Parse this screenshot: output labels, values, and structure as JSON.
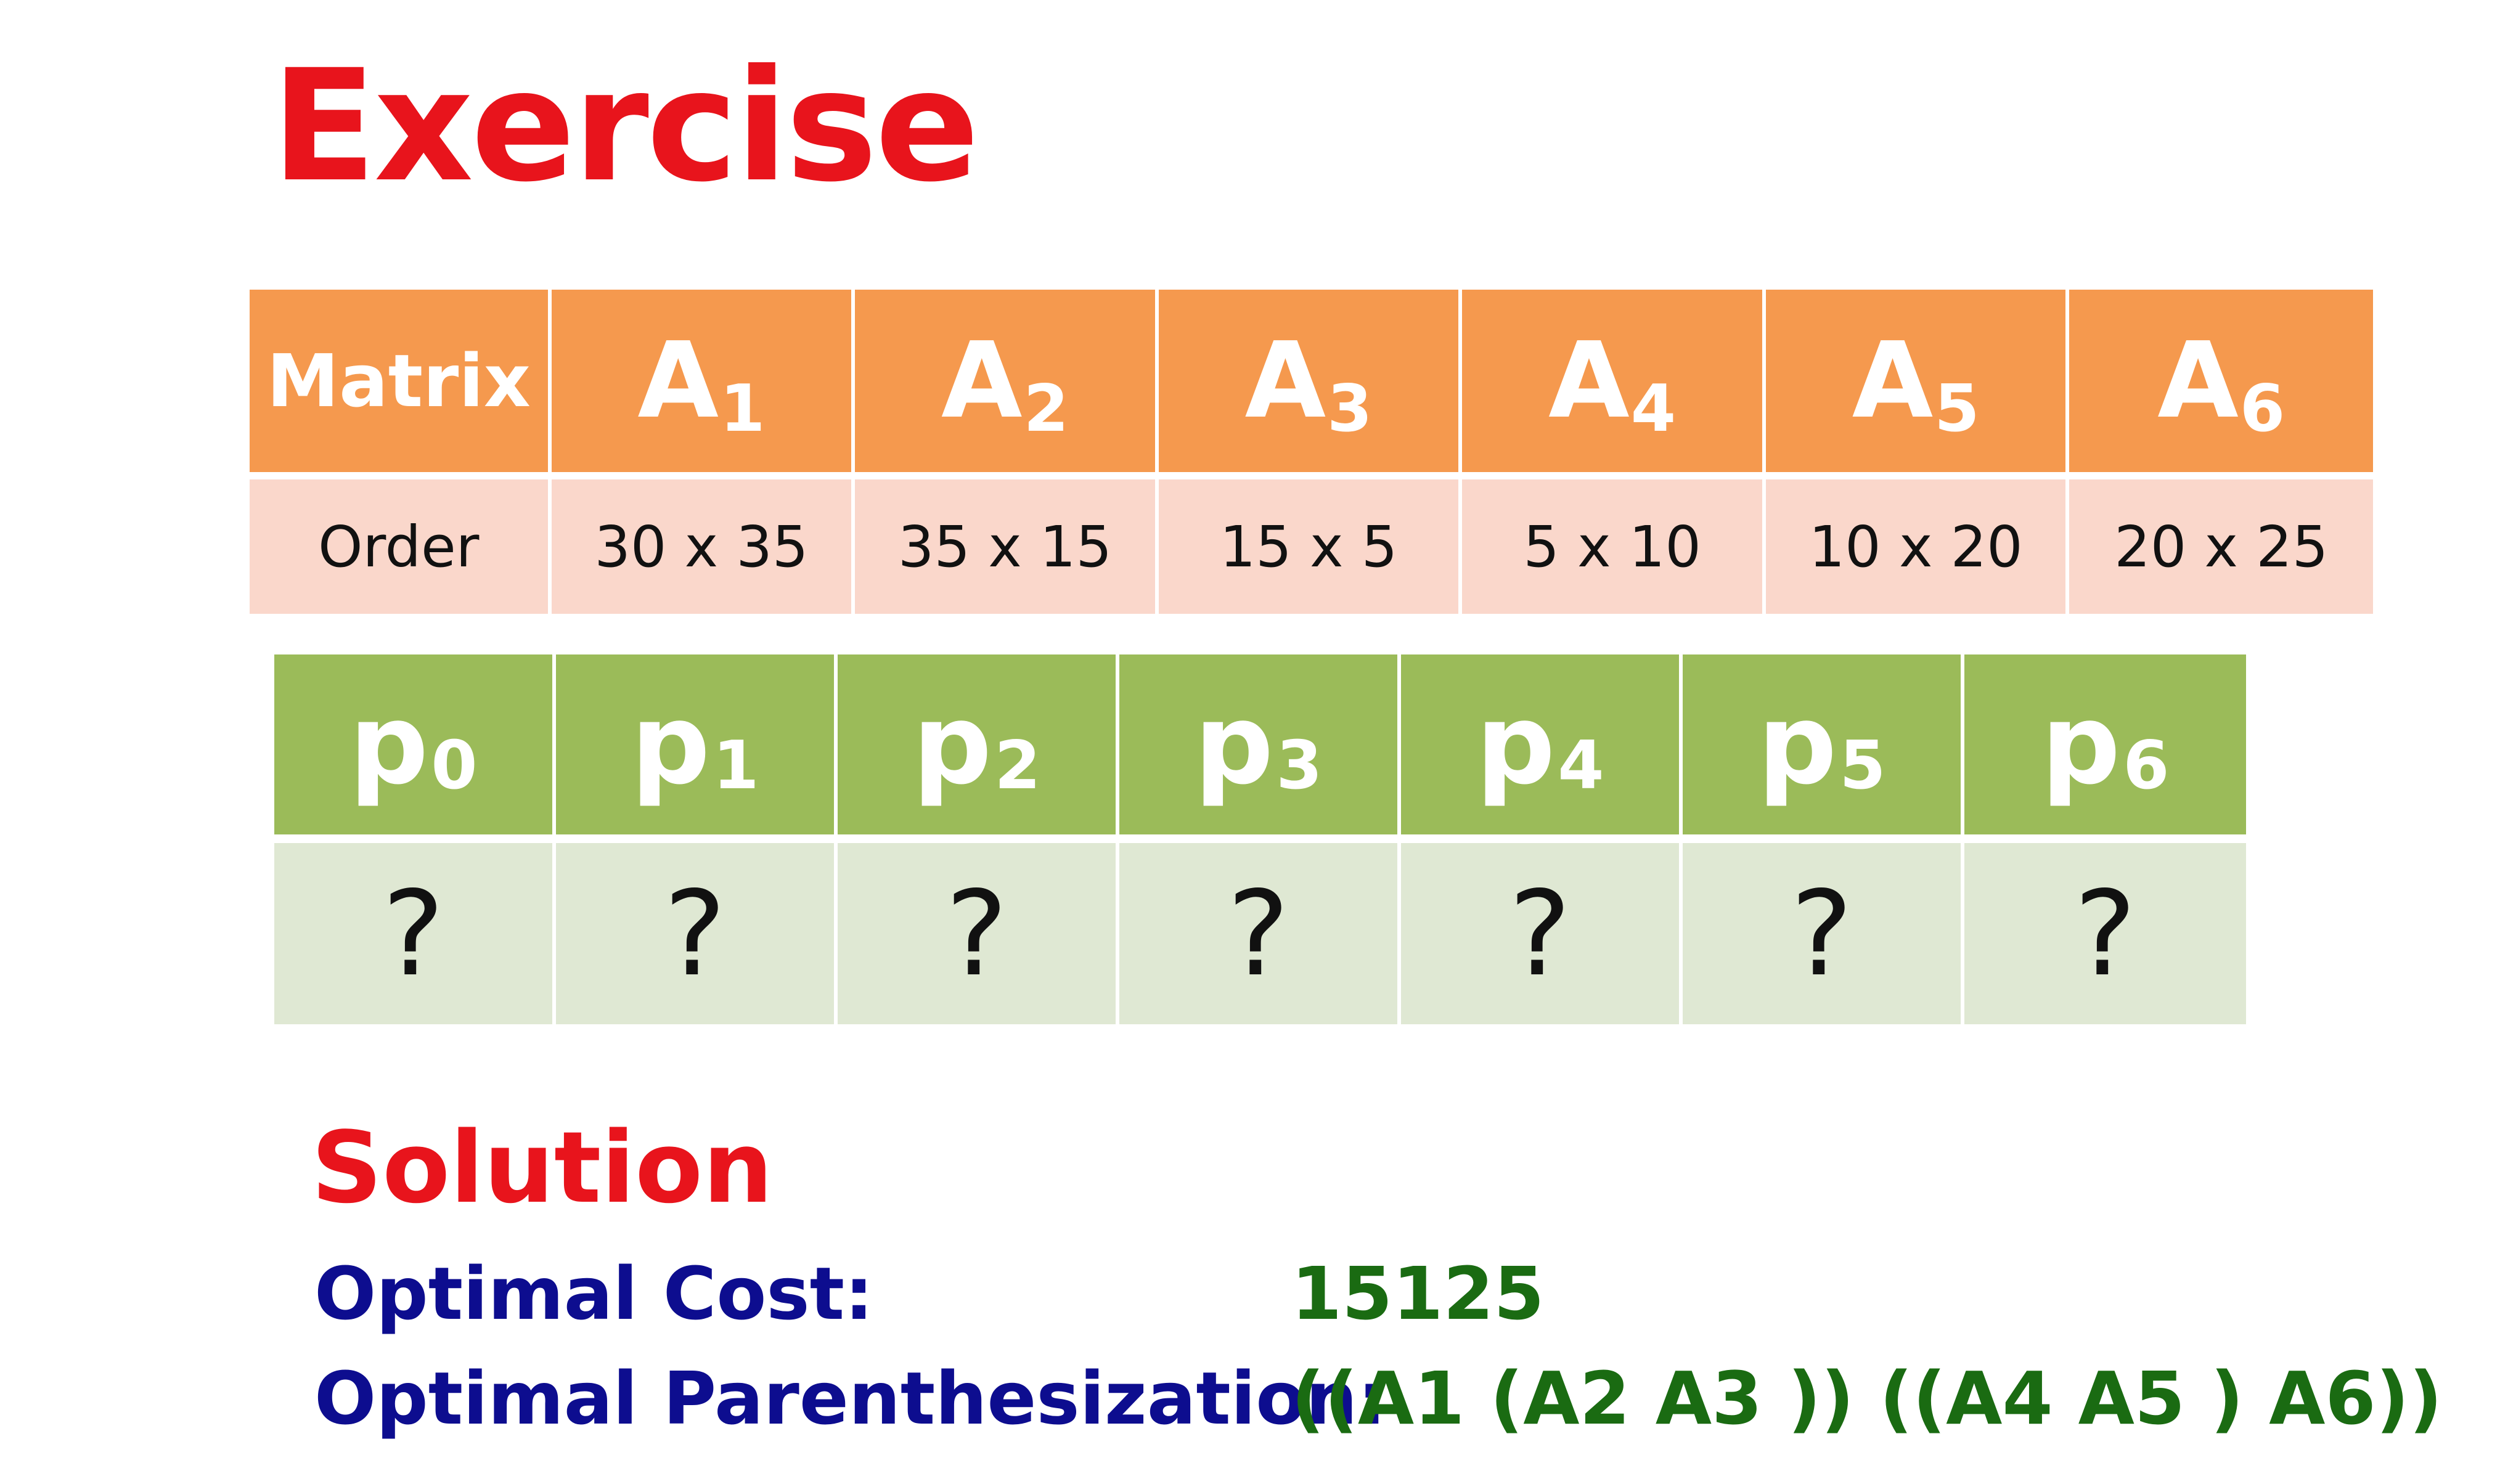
{
  "title": "Exercise",
  "matrix_table": {
    "header_label": "Matrix",
    "row_label": "Order",
    "columns": [
      {
        "base": "A",
        "sub": "1",
        "order": "30 x 35"
      },
      {
        "base": "A",
        "sub": "2",
        "order": "35 x 15"
      },
      {
        "base": "A",
        "sub": "3",
        "order": "15 x 5"
      },
      {
        "base": "A",
        "sub": "4",
        "order": "5 x 10"
      },
      {
        "base": "A",
        "sub": "5",
        "order": "10 x 20"
      },
      {
        "base": "A",
        "sub": "6",
        "order": "20 x 25"
      }
    ]
  },
  "p_table": {
    "columns": [
      {
        "base": "p",
        "sub": "0",
        "value": "?"
      },
      {
        "base": "p",
        "sub": "1",
        "value": "?"
      },
      {
        "base": "p",
        "sub": "2",
        "value": "?"
      },
      {
        "base": "p",
        "sub": "3",
        "value": "?"
      },
      {
        "base": "p",
        "sub": "4",
        "value": "?"
      },
      {
        "base": "p",
        "sub": "5",
        "value": "?"
      },
      {
        "base": "p",
        "sub": "6",
        "value": "?"
      }
    ]
  },
  "solution": {
    "heading": "Solution",
    "cost_label": "Optimal Cost:",
    "cost_value": "15125",
    "paren_label": "Optimal Parenthesization:",
    "paren_value": "((A1 (A2 A3 )) ((A4 A5 ) A6))"
  },
  "colors": {
    "title_red": "#e8141c",
    "orange_header": "#f5994e",
    "orange_light": "#fad7cb",
    "green_header": "#9bbb59",
    "green_light": "#dfe8d3",
    "label_blue": "#0d0d8f",
    "value_green": "#1a6b12"
  }
}
